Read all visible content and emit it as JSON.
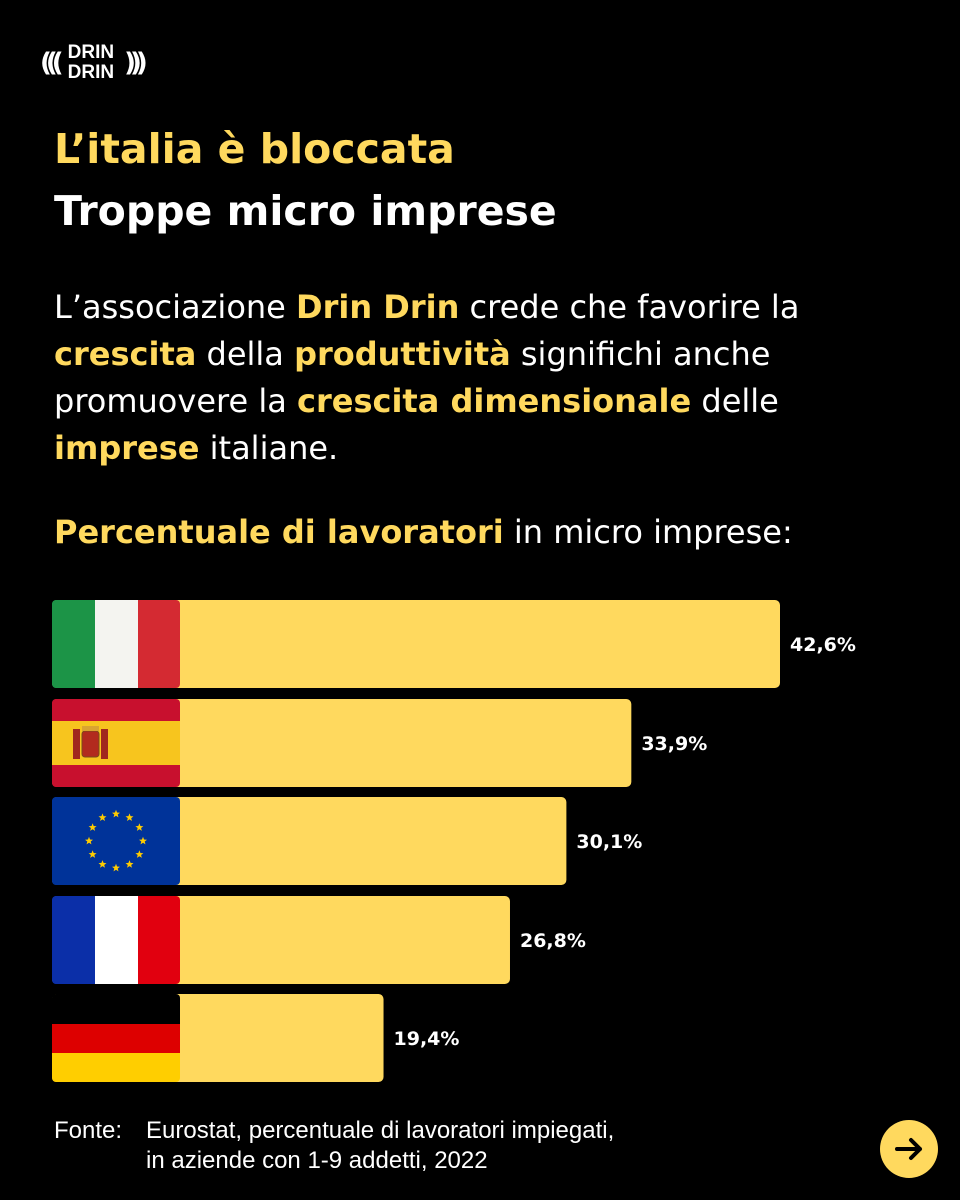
{
  "logo": {
    "line1": "DRIN",
    "line2": "DRIN",
    "waves_left": "(((",
    "waves_right": ")))"
  },
  "title_line1": "L’italia è bloccata",
  "title_line2": "Troppe micro imprese",
  "intro": [
    {
      "text": "L’associazione ",
      "hl": false
    },
    {
      "text": "Drin Drin",
      "hl": true
    },
    {
      "text": " crede che favorire la ",
      "hl": false
    },
    {
      "text": "crescita",
      "hl": true
    },
    {
      "text": " della ",
      "hl": false
    },
    {
      "text": "produttività",
      "hl": true
    },
    {
      "text": " significhi anche promuovere la ",
      "hl": false
    },
    {
      "text": "crescita dimensionale",
      "hl": true
    },
    {
      "text": " delle ",
      "hl": false
    },
    {
      "text": "imprese",
      "hl": true
    },
    {
      "text": " italiane.",
      "hl": false
    }
  ],
  "subtitle": {
    "highlight": "Percentuale di lavoratori",
    "rest": " in micro imprese:"
  },
  "colors": {
    "accent": "#ffd95e",
    "background": "#000000",
    "text": "#ffffff"
  },
  "chart_data": {
    "type": "bar",
    "orientation": "horizontal",
    "categories": [
      "Italia",
      "Spagna",
      "Unione Europea",
      "Francia",
      "Germania"
    ],
    "flags": [
      "italy-flag-icon",
      "spain-flag-icon",
      "eu-flag-icon",
      "france-flag-icon",
      "germany-flag-icon"
    ],
    "values": [
      42.6,
      33.9,
      30.1,
      26.8,
      19.4
    ],
    "value_labels": [
      "42,6%",
      "33,9%",
      "30,1%",
      "26,8%",
      "19,4%"
    ],
    "unit": "%",
    "bar_color": "#ffd95e",
    "grid": false
  },
  "footer": {
    "label": "Fonte:",
    "line1": "Eurostat, percentuale di lavoratori impiegati,",
    "line2": "in aziende con 1-9 addetti, 2022"
  }
}
